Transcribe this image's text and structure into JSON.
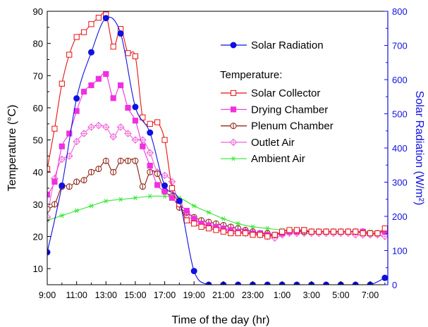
{
  "chart_data": {
    "type": "line",
    "title": "",
    "xlabel": "Time of the day (hr)",
    "ylabel_left": "Temperature (°C)",
    "ylabel_right": "Solar Radiation (W/m²)",
    "x_tick_labels": [
      "9:00",
      "11:00",
      "13:00",
      "15:00",
      "17:00",
      "19:00",
      "21:00",
      "23:00",
      "1:00",
      "3:00",
      "5:00",
      "7:00"
    ],
    "x_range_hours": [
      9,
      32.2
    ],
    "ylim_left": [
      5,
      90
    ],
    "ylim_right": [
      0,
      800
    ],
    "yticks_left": [
      10,
      20,
      30,
      40,
      50,
      60,
      70,
      80,
      90
    ],
    "yticks_right": [
      0,
      100,
      200,
      300,
      400,
      500,
      600,
      700,
      800
    ],
    "legend_position": "top-right",
    "legend_header": "Temperature:",
    "colors": {
      "solar_radiation": "#1010e0",
      "solar_collector": "#e81010",
      "drying_chamber": "#f030e0",
      "plenum_chamber": "#8a1a0a",
      "outlet_air": "#f060d8",
      "ambient_air": "#30e830"
    },
    "series": [
      {
        "name": "Solar Radiation",
        "axis": "right",
        "marker": "filled-circle",
        "x": [
          9.0,
          10.0,
          11.0,
          12.0,
          13.0,
          14.0,
          15.0,
          16.0,
          17.0,
          18.0,
          19.0,
          20.0,
          21.0,
          22.0,
          23.0,
          24.0,
          25.0,
          26.0,
          27.0,
          28.0,
          29.0,
          30.0,
          31.0,
          32.0
        ],
        "values": [
          95,
          290,
          545,
          680,
          780,
          735,
          520,
          445,
          290,
          245,
          40,
          0,
          0,
          0,
          0,
          0,
          0,
          0,
          0,
          0,
          0,
          0,
          0,
          20
        ]
      },
      {
        "name": "Solar Collector",
        "axis": "left",
        "marker": "open-square",
        "x": [
          9.0,
          9.5,
          10.0,
          10.5,
          11.0,
          11.5,
          12.0,
          12.5,
          13.0,
          13.5,
          14.0,
          14.5,
          15.0,
          15.5,
          16.0,
          16.5,
          17.0,
          17.5,
          18.0,
          18.5,
          19.0,
          19.5,
          20.0,
          20.5,
          21.0,
          21.5,
          22.0,
          22.5,
          23.0,
          23.5,
          24.0,
          24.5,
          25.0,
          25.5,
          26.0,
          26.5,
          27.0,
          27.5,
          28.0,
          28.5,
          29.0,
          29.5,
          30.0,
          30.5,
          31.0,
          31.5,
          32.0
        ],
        "values": [
          41,
          53.5,
          67.5,
          76.5,
          82,
          83.5,
          86,
          88,
          89,
          79,
          84.5,
          77,
          76,
          57,
          55,
          55.5,
          50,
          35,
          30,
          25,
          24,
          23,
          22.5,
          22,
          21.5,
          21,
          21,
          21,
          20.5,
          20.5,
          20,
          20.5,
          21.5,
          22,
          22,
          22,
          21.5,
          21.5,
          21.5,
          21.5,
          21.5,
          21.5,
          21.5,
          21,
          21,
          21,
          22.5
        ]
      },
      {
        "name": "Drying Chamber",
        "axis": "left",
        "marker": "filled-square",
        "x": [
          9.0,
          9.5,
          10.0,
          10.5,
          11.0,
          11.5,
          12.0,
          12.5,
          13.0,
          13.5,
          14.0,
          14.5,
          15.0,
          15.5,
          16.0,
          16.5,
          17.0,
          17.5,
          18.0,
          18.5,
          19.0,
          19.5,
          20.0,
          20.5,
          21.0,
          21.5,
          22.0,
          22.5,
          23.0,
          23.5,
          24.0,
          24.5,
          25.0,
          25.5,
          26.0,
          26.5,
          27.0,
          27.5,
          28.0,
          28.5,
          29.0,
          29.5,
          30.0,
          30.5,
          31.0,
          31.5,
          32.0
        ],
        "values": [
          33,
          37,
          48,
          52,
          59,
          65,
          67,
          69,
          70.5,
          63,
          67,
          60,
          56,
          48,
          42,
          36,
          34,
          32,
          30,
          28,
          25.5,
          24,
          23.5,
          23,
          22.5,
          22,
          21.5,
          21.5,
          21,
          21,
          20.5,
          20.5,
          21,
          21.5,
          21.5,
          22,
          21.5,
          21.5,
          21.5,
          21.5,
          21.5,
          21.5,
          21.5,
          21.5,
          21,
          21,
          21.5
        ]
      },
      {
        "name": "Plenum Chamber",
        "axis": "left",
        "marker": "open-circle-cross",
        "x": [
          9.0,
          9.5,
          10.0,
          10.5,
          11.0,
          11.5,
          12.0,
          12.5,
          13.0,
          13.5,
          14.0,
          14.5,
          15.0,
          15.5,
          16.0,
          16.5,
          17.0,
          17.5,
          18.0,
          18.5,
          19.0,
          19.5,
          20.0,
          20.5,
          21.0,
          21.5,
          22.0,
          22.5,
          23.0,
          23.5,
          24.0,
          24.5,
          25.0,
          25.5,
          26.0,
          26.5,
          27.0,
          27.5,
          28.0,
          28.5,
          29.0,
          29.5,
          30.0,
          30.5,
          31.0,
          31.5,
          32.0
        ],
        "values": [
          28.5,
          30,
          35.5,
          35.5,
          37,
          37.5,
          40,
          41,
          43.5,
          40,
          43.5,
          43.5,
          43.5,
          35.5,
          40,
          39.5,
          34,
          32.5,
          29,
          27.5,
          26,
          25,
          24.5,
          24,
          23.5,
          23,
          22.5,
          22,
          21.5,
          21,
          21,
          20.5,
          21,
          21.5,
          21.5,
          21.5,
          21.5,
          21.5,
          21.5,
          21.5,
          21.5,
          21.5,
          21.5,
          21.5,
          21,
          21,
          21.5
        ]
      },
      {
        "name": "Outlet Air",
        "axis": "left",
        "marker": "open-diamond-cross",
        "x": [
          9.0,
          9.5,
          10.0,
          10.5,
          11.0,
          11.5,
          12.0,
          12.5,
          13.0,
          13.5,
          14.0,
          14.5,
          15.0,
          15.5,
          16.0,
          16.5,
          17.0,
          17.5,
          18.0,
          18.5,
          19.0,
          19.5,
          20.0,
          20.5,
          21.0,
          21.5,
          22.0,
          22.5,
          23.0,
          23.5,
          24.0,
          24.5,
          25.0,
          25.5,
          26.0,
          26.5,
          27.0,
          27.5,
          28.0,
          28.5,
          29.0,
          29.5,
          30.0,
          30.5,
          31.0,
          31.5,
          32.0
        ],
        "values": [
          26,
          38,
          44,
          45,
          49.5,
          52,
          54,
          54.5,
          54,
          51,
          54,
          52,
          50,
          50,
          46,
          40,
          39,
          37,
          29.5,
          26.5,
          25,
          24,
          23,
          22.5,
          22,
          21.5,
          21.5,
          21,
          21,
          20.5,
          20,
          19.5,
          20.5,
          21,
          21,
          21,
          21,
          21,
          21,
          21,
          21,
          21,
          20.5,
          20.5,
          20.5,
          20.5,
          20
        ]
      },
      {
        "name": "Ambient Air",
        "axis": "left",
        "marker": "asterisk",
        "x": [
          9.0,
          10.0,
          11.0,
          12.0,
          13.0,
          14.0,
          15.0,
          16.0,
          17.0,
          18.0,
          19.0,
          20.0,
          21.0,
          22.0,
          23.0,
          24.0,
          25.0,
          26.0,
          27.0,
          28.0,
          29.0,
          30.0,
          31.0,
          32.0
        ],
        "values": [
          25,
          26.5,
          28,
          29.5,
          31,
          31.5,
          32,
          32.5,
          32.5,
          32,
          29.5,
          27.5,
          25.5,
          24,
          23,
          22.5,
          22,
          22,
          21.5,
          21.5,
          21.5,
          21.5,
          21.5,
          21.5
        ]
      }
    ]
  }
}
